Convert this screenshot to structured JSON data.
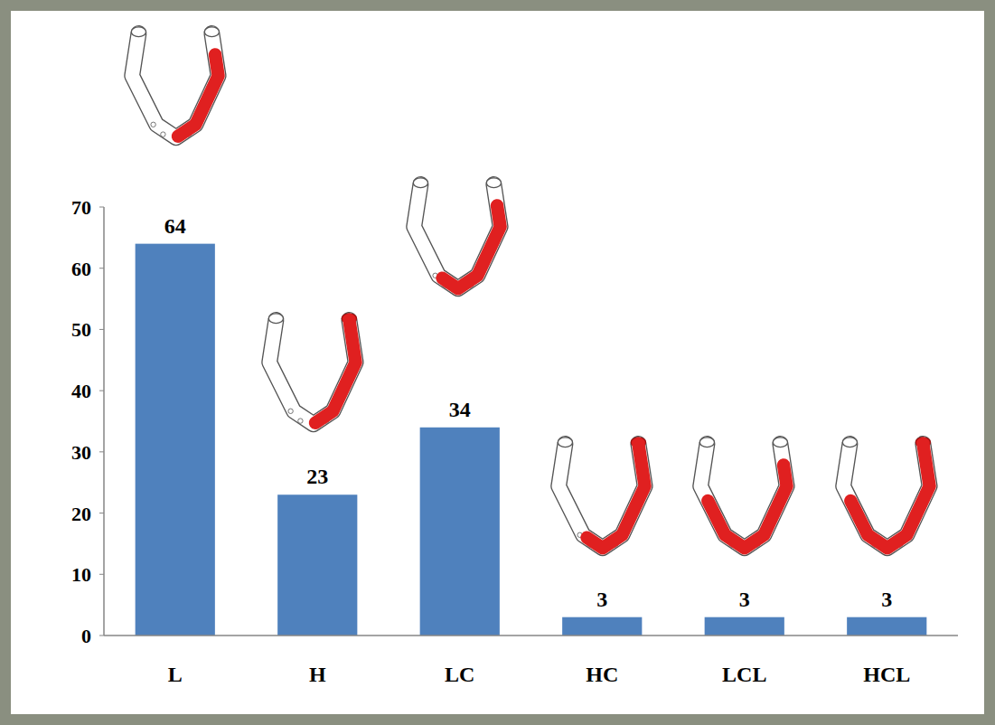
{
  "chart_data": {
    "type": "bar",
    "categories": [
      "L",
      "H",
      "LC",
      "HC",
      "LCL",
      "HCL"
    ],
    "values": [
      64,
      23,
      34,
      3,
      3,
      3
    ],
    "color": "#4f81bd",
    "ylim": [
      0,
      70
    ],
    "yticks": [
      0,
      10,
      20,
      30,
      40,
      50,
      60,
      70
    ],
    "grid": false,
    "data_labels": true
  }
}
